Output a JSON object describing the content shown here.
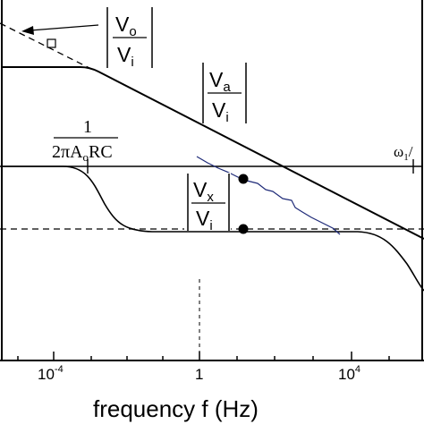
{
  "x_axis": {
    "label": "frequency f (Hz)",
    "ticks": [
      {
        "base": "10",
        "exp": "-4"
      },
      {
        "base": "1",
        "exp": ""
      },
      {
        "base": "10",
        "exp": "4"
      }
    ]
  },
  "labels": {
    "vo_vi": {
      "num": "V",
      "num_sub": "o",
      "den": "V",
      "den_sub": "i"
    },
    "va_vi": {
      "num": "V",
      "num_sub": "a",
      "den": "V",
      "den_sub": "i"
    },
    "vx_vi": {
      "num": "V",
      "num_sub": "x",
      "den": "V",
      "den_sub": "i"
    },
    "breakpoint": {
      "num": "1",
      "den_pre": "2πA",
      "den_sub": "o",
      "den_post": "RC"
    },
    "omega": {
      "main": "ω",
      "sub": "1",
      "tail": "/"
    }
  },
  "colors": {
    "curve": "#000000",
    "measured": "#1e2a78",
    "marker": "#000000"
  }
}
